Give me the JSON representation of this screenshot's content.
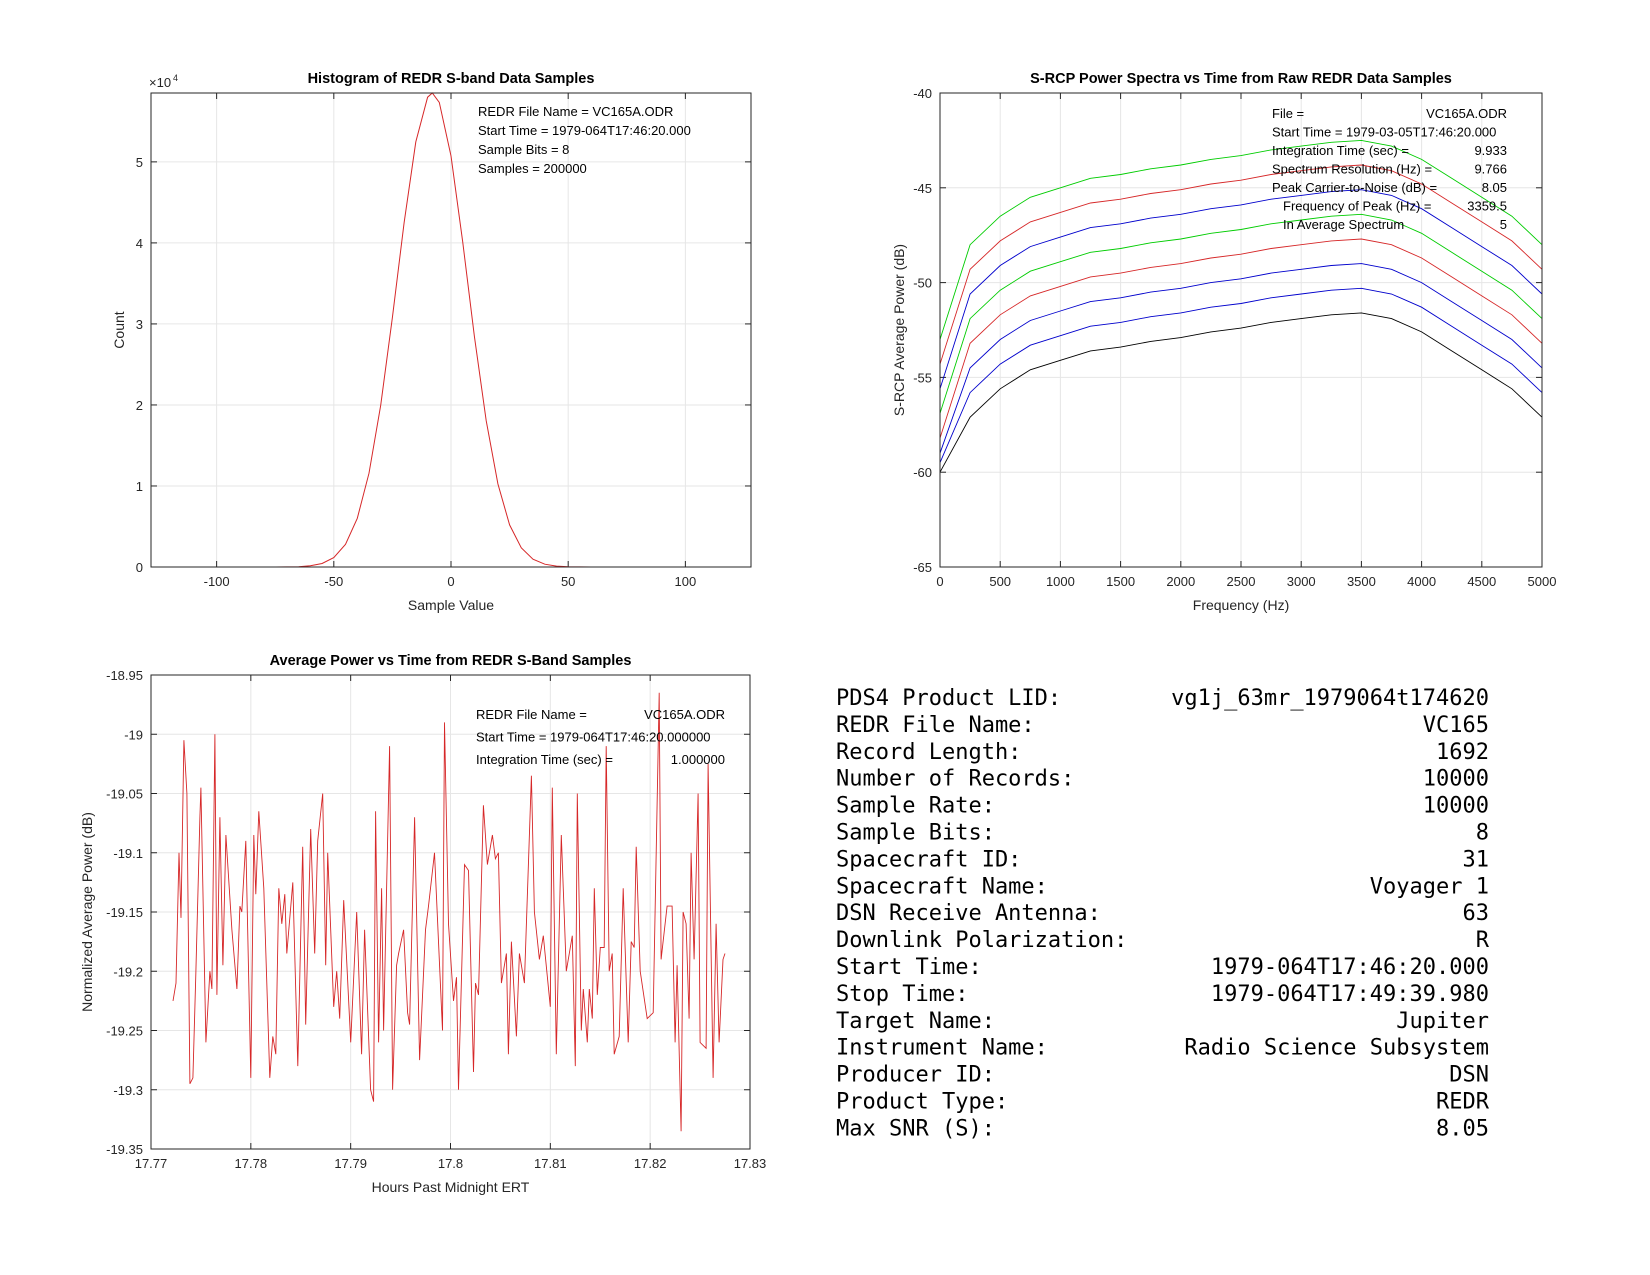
{
  "chart_data": [
    {
      "type": "line",
      "title": "Histogram of REDR S-band Data Samples",
      "xlabel": "Sample Value",
      "ylabel": "Count",
      "y_exponent_label": "×10",
      "y_exponent": "4",
      "xlim": [
        -128,
        128
      ],
      "ylim": [
        0,
        58500
      ],
      "xticks": [
        -100,
        -50,
        0,
        50,
        100
      ],
      "xtick_labels": [
        "-100",
        "-50",
        "0",
        "50",
        "100"
      ],
      "yticks": [
        0,
        10000,
        20000,
        30000,
        40000,
        50000
      ],
      "ytick_labels": [
        "0",
        "1",
        "2",
        "3",
        "4",
        "5"
      ],
      "grid": true,
      "color": "#d62728",
      "x": [
        -85,
        -80,
        -75,
        -70,
        -65,
        -60,
        -55,
        -50,
        -45,
        -40,
        -35,
        -30,
        -25,
        -20,
        -15,
        -10,
        -8,
        -5,
        0,
        5,
        10,
        15,
        20,
        25,
        30,
        35,
        40,
        45,
        50,
        55,
        60
      ],
      "y": [
        0,
        1,
        3,
        11,
        43,
        144,
        430,
        1160,
        2800,
        6010,
        11580,
        19960,
        30800,
        42480,
        52470,
        57980,
        58500,
        57340,
        50740,
        40140,
        28460,
        18060,
        10250,
        5200,
        2365,
        960,
        350,
        114,
        33,
        9,
        0
      ],
      "annotation": [
        "REDR File Name = VC165A.ODR",
        "Start Time = 1979-064T17:46:20.000",
        "Sample Bits = 8",
        "Samples = 200000"
      ]
    },
    {
      "type": "line",
      "title": "S-RCP Power Spectra vs Time from Raw REDR Data Samples",
      "xlabel": "Frequency (Hz)",
      "ylabel": "S-RCP Average Power (dB)",
      "xlim": [
        0,
        5000
      ],
      "ylim": [
        -65,
        -40
      ],
      "xticks": [
        0,
        500,
        1000,
        1500,
        2000,
        2500,
        3000,
        3500,
        4000,
        4500,
        5000
      ],
      "xtick_labels": [
        "0",
        "500",
        "1000",
        "1500",
        "2000",
        "2500",
        "3000",
        "3500",
        "4000",
        "4500",
        "5000"
      ],
      "yticks": [
        -65,
        -60,
        -55,
        -50,
        -45,
        -40
      ],
      "ytick_labels": [
        "-65",
        "-60",
        "-55",
        "-50",
        "-45",
        "-40"
      ],
      "grid": true,
      "x": [
        0,
        250,
        500,
        750,
        1000,
        1250,
        1500,
        1750,
        2000,
        2250,
        2500,
        2750,
        3000,
        3250,
        3500,
        3750,
        4000,
        4250,
        4500,
        4750,
        5000
      ],
      "series": [
        {
          "color": "#00cc00",
          "values": [
            -53,
            -48,
            -46.5,
            -45.5,
            -45,
            -44.5,
            -44.3,
            -44,
            -43.8,
            -43.5,
            -43.3,
            -43,
            -42.8,
            -42.6,
            -42.5,
            -42.8,
            -43.5,
            -44.5,
            -45.5,
            -46.5,
            -48
          ]
        },
        {
          "color": "#d62728",
          "values": [
            -54.3,
            -49.3,
            -47.8,
            -46.8,
            -46.3,
            -45.8,
            -45.6,
            -45.3,
            -45.1,
            -44.8,
            -44.6,
            -44.3,
            -44.1,
            -43.9,
            -43.8,
            -44.1,
            -44.8,
            -45.8,
            -46.8,
            -47.8,
            -49.3
          ]
        },
        {
          "color": "#0000cc",
          "values": [
            -55.6,
            -50.6,
            -49.1,
            -48.1,
            -47.6,
            -47.1,
            -46.9,
            -46.6,
            -46.4,
            -46.1,
            -45.9,
            -45.6,
            -45.4,
            -45.2,
            -45.1,
            -45.4,
            -46.1,
            -47.1,
            -48.1,
            -49.1,
            -50.6
          ]
        },
        {
          "color": "#00cc00",
          "values": [
            -56.9,
            -51.9,
            -50.4,
            -49.4,
            -48.9,
            -48.4,
            -48.2,
            -47.9,
            -47.7,
            -47.4,
            -47.2,
            -46.9,
            -46.7,
            -46.5,
            -46.4,
            -46.7,
            -47.4,
            -48.4,
            -49.4,
            -50.4,
            -51.9
          ]
        },
        {
          "color": "#d62728",
          "values": [
            -58.2,
            -53.2,
            -51.7,
            -50.7,
            -50.2,
            -49.7,
            -49.5,
            -49.2,
            -49,
            -48.7,
            -48.5,
            -48.2,
            -48,
            -47.8,
            -47.7,
            -48,
            -48.7,
            -49.7,
            -50.7,
            -51.7,
            -53.2
          ]
        },
        {
          "color": "#0000cc",
          "values": [
            -59,
            -54.5,
            -53,
            -52,
            -51.5,
            -51,
            -50.8,
            -50.5,
            -50.3,
            -50,
            -49.8,
            -49.5,
            -49.3,
            -49.1,
            -49,
            -49.3,
            -50,
            -51,
            -52,
            -53,
            -54.5
          ]
        },
        {
          "color": "#0000cc",
          "values": [
            -59.5,
            -55.8,
            -54.3,
            -53.3,
            -52.8,
            -52.3,
            -52.1,
            -51.8,
            -51.6,
            -51.3,
            -51.1,
            -50.8,
            -50.6,
            -50.4,
            -50.3,
            -50.6,
            -51.3,
            -52.3,
            -53.3,
            -54.3,
            -55.8
          ]
        },
        {
          "color": "#000000",
          "values": [
            -60,
            -57.1,
            -55.6,
            -54.6,
            -54.1,
            -53.6,
            -53.4,
            -53.1,
            -52.9,
            -52.6,
            -52.4,
            -52.1,
            -51.9,
            -51.7,
            -51.6,
            -51.9,
            -52.6,
            -53.6,
            -54.6,
            -55.6,
            -57.1
          ]
        }
      ],
      "annotation": [
        {
          "label": "File =",
          "value": "VC165A.ODR"
        },
        {
          "label": "Start Time = 1979-03-05T17:46:20.000",
          "value": ""
        },
        {
          "label": "Integration Time (sec) =",
          "value": "9.933"
        },
        {
          "label": "Spectrum Resolution (Hz) =",
          "value": "9.766"
        },
        {
          "label": "Peak Carrier-to-Noise (dB) =",
          "value": "8.05"
        },
        {
          "label": "Frequency of Peak (Hz) =",
          "value": "3359.5"
        },
        {
          "label": "In Average Spectrum",
          "value": "5"
        }
      ]
    },
    {
      "type": "line",
      "title": "Average Power vs Time from REDR S-Band Samples",
      "xlabel": "Hours Past Midnight ERT",
      "ylabel": "Normalized Average Power (dB)",
      "xlim": [
        17.77,
        17.83
      ],
      "ylim": [
        -19.35,
        -18.95
      ],
      "xticks": [
        17.77,
        17.78,
        17.79,
        17.8,
        17.81,
        17.82,
        17.83
      ],
      "xtick_labels": [
        "17.77",
        "17.78",
        "17.79",
        "17.8",
        "17.81",
        "17.82",
        "17.83"
      ],
      "yticks": [
        -19.35,
        -19.3,
        -19.25,
        -19.2,
        -19.15,
        -19.1,
        -19.05,
        -19,
        -18.95
      ],
      "ytick_labels": [
        "-19.35",
        "-19.3",
        "-19.25",
        "-19.2",
        "-19.15",
        "-19.1",
        "-19.05",
        "-19",
        "-18.95"
      ],
      "grid": true,
      "color": "#d62728",
      "points": [
        [
          17.7722,
          -19.225
        ],
        [
          17.7725,
          -19.21
        ],
        [
          17.7728,
          -19.1
        ],
        [
          17.773,
          -19.155
        ],
        [
          17.7733,
          -19.005
        ],
        [
          17.7736,
          -19.05
        ],
        [
          17.7739,
          -19.295
        ],
        [
          17.7742,
          -19.29
        ],
        [
          17.7745,
          -19.2
        ],
        [
          17.7749,
          -19.07
        ],
        [
          17.775,
          -19.045
        ],
        [
          17.7755,
          -19.26
        ],
        [
          17.7759,
          -19.2
        ],
        [
          17.7761,
          -19.215
        ],
        [
          17.7764,
          -19.0
        ],
        [
          17.7766,
          -19.22
        ],
        [
          17.7769,
          -19.07
        ],
        [
          17.7772,
          -19.195
        ],
        [
          17.7775,
          -19.085
        ],
        [
          17.7781,
          -19.165
        ],
        [
          17.7786,
          -19.215
        ],
        [
          17.7789,
          -19.145
        ],
        [
          17.7791,
          -19.15
        ],
        [
          17.7795,
          -19.09
        ],
        [
          17.78,
          -19.29
        ],
        [
          17.7803,
          -19.085
        ],
        [
          17.7805,
          -19.135
        ],
        [
          17.7808,
          -19.065
        ],
        [
          17.7813,
          -19.13
        ],
        [
          17.7819,
          -19.29
        ],
        [
          17.7822,
          -19.255
        ],
        [
          17.7825,
          -19.27
        ],
        [
          17.7828,
          -19.13
        ],
        [
          17.7831,
          -19.16
        ],
        [
          17.7834,
          -19.135
        ],
        [
          17.7836,
          -19.185
        ],
        [
          17.7842,
          -19.125
        ],
        [
          17.7847,
          -19.28
        ],
        [
          17.7852,
          -19.095
        ],
        [
          17.7855,
          -19.245
        ],
        [
          17.786,
          -19.08
        ],
        [
          17.7864,
          -19.185
        ],
        [
          17.7867,
          -19.09
        ],
        [
          17.7872,
          -19.05
        ],
        [
          17.7875,
          -19.195
        ],
        [
          17.7877,
          -19.1
        ],
        [
          17.7883,
          -19.23
        ],
        [
          17.7886,
          -19.2
        ],
        [
          17.7889,
          -19.24
        ],
        [
          17.7893,
          -19.14
        ],
        [
          17.79,
          -19.26
        ],
        [
          17.7906,
          -19.15
        ],
        [
          17.7911,
          -19.27
        ],
        [
          17.7914,
          -19.165
        ],
        [
          17.792,
          -19.3
        ],
        [
          17.7923,
          -19.31
        ],
        [
          17.7925,
          -19.065
        ],
        [
          17.7928,
          -19.26
        ],
        [
          17.7931,
          -19.13
        ],
        [
          17.7933,
          -19.25
        ],
        [
          17.7939,
          -19.01
        ],
        [
          17.7942,
          -19.3
        ],
        [
          17.7946,
          -19.195
        ],
        [
          17.7948,
          -19.185
        ],
        [
          17.7953,
          -19.165
        ],
        [
          17.7957,
          -19.235
        ],
        [
          17.7959,
          -19.245
        ],
        [
          17.7964,
          -19.07
        ],
        [
          17.7969,
          -19.275
        ],
        [
          17.7975,
          -19.165
        ],
        [
          17.7978,
          -19.145
        ],
        [
          17.7984,
          -19.1
        ],
        [
          17.7992,
          -19.25
        ],
        [
          17.7994,
          -18.99
        ],
        [
          17.7998,
          -19.16
        ],
        [
          17.8003,
          -19.225
        ],
        [
          17.8006,
          -19.205
        ],
        [
          17.8008,
          -19.3
        ],
        [
          17.8014,
          -19.11
        ],
        [
          17.8018,
          -19.115
        ],
        [
          17.8023,
          -19.285
        ],
        [
          17.8025,
          -19.21
        ],
        [
          17.8028,
          -19.22
        ],
        [
          17.8033,
          -19.06
        ],
        [
          17.8037,
          -19.11
        ],
        [
          17.8042,
          -19.085
        ],
        [
          17.8045,
          -19.105
        ],
        [
          17.8048,
          -19.1
        ],
        [
          17.8051,
          -19.21
        ],
        [
          17.8056,
          -19.185
        ],
        [
          17.8058,
          -19.27
        ],
        [
          17.8061,
          -19.175
        ],
        [
          17.8066,
          -19.255
        ],
        [
          17.8069,
          -19.185
        ],
        [
          17.8074,
          -19.21
        ],
        [
          17.8081,
          -19.035
        ],
        [
          17.8084,
          -19.15
        ],
        [
          17.8089,
          -19.19
        ],
        [
          17.8093,
          -19.17
        ],
        [
          17.81,
          -19.23
        ],
        [
          17.8102,
          -19.045
        ],
        [
          17.8106,
          -19.27
        ],
        [
          17.8111,
          -19.085
        ],
        [
          17.8116,
          -19.2
        ],
        [
          17.8122,
          -19.17
        ],
        [
          17.8125,
          -19.28
        ],
        [
          17.8127,
          -19.05
        ],
        [
          17.8131,
          -19.25
        ],
        [
          17.8133,
          -19.215
        ],
        [
          17.8137,
          -19.26
        ],
        [
          17.8139,
          -19.215
        ],
        [
          17.8142,
          -19.24
        ],
        [
          17.8144,
          -19.13
        ],
        [
          17.8147,
          -19.22
        ],
        [
          17.815,
          -19.18
        ],
        [
          17.8154,
          -19.18
        ],
        [
          17.8156,
          -19.01
        ],
        [
          17.8159,
          -19.2
        ],
        [
          17.8162,
          -19.185
        ],
        [
          17.8164,
          -19.27
        ],
        [
          17.8169,
          -19.255
        ],
        [
          17.8173,
          -19.13
        ],
        [
          17.8178,
          -19.26
        ],
        [
          17.8181,
          -19.175
        ],
        [
          17.8184,
          -19.18
        ],
        [
          17.8186,
          -19.095
        ],
        [
          17.819,
          -19.2
        ],
        [
          17.8197,
          -19.24
        ],
        [
          17.8203,
          -19.235
        ],
        [
          17.8209,
          -18.965
        ],
        [
          17.8211,
          -19.19
        ],
        [
          17.8217,
          -19.145
        ],
        [
          17.8222,
          -19.145
        ],
        [
          17.8225,
          -19.26
        ],
        [
          17.8227,
          -19.195
        ],
        [
          17.8231,
          -19.335
        ],
        [
          17.8233,
          -19.15
        ],
        [
          17.8236,
          -19.16
        ],
        [
          17.8239,
          -19.24
        ],
        [
          17.8241,
          -19.1
        ],
        [
          17.8244,
          -19.19
        ],
        [
          17.8248,
          -19.05
        ],
        [
          17.825,
          -19.26
        ],
        [
          17.8256,
          -19.265
        ],
        [
          17.8258,
          -19.025
        ],
        [
          17.8263,
          -19.29
        ],
        [
          17.8266,
          -19.16
        ],
        [
          17.8269,
          -19.26
        ],
        [
          17.8273,
          -19.19
        ],
        [
          17.8275,
          -19.185
        ]
      ],
      "annotation": [
        {
          "label": "REDR File Name =",
          "value": "VC165A.ODR"
        },
        {
          "label": "Start Time = 1979-064T17:46:20.000000",
          "value": ""
        },
        {
          "label": "Integration Time (sec) =",
          "value": "1.000000"
        }
      ]
    }
  ],
  "summary_table": [
    {
      "label": "PDS4 Product LID:",
      "value": "vg1j_63mr_1979064t174620"
    },
    {
      "label": "REDR File Name:",
      "value": "VC165"
    },
    {
      "label": "Record Length:",
      "value": "1692"
    },
    {
      "label": "Number of Records:",
      "value": "10000"
    },
    {
      "label": "Sample Rate:",
      "value": "10000"
    },
    {
      "label": "Sample Bits:",
      "value": "8"
    },
    {
      "label": "Spacecraft ID:",
      "value": "31"
    },
    {
      "label": "Spacecraft Name:",
      "value": "Voyager 1"
    },
    {
      "label": "DSN Receive Antenna:",
      "value": "63"
    },
    {
      "label": "Downlink Polarization:",
      "value": "R"
    },
    {
      "label": "Start Time:",
      "value": "1979-064T17:46:20.000"
    },
    {
      "label": "Stop Time:",
      "value": "1979-064T17:49:39.980"
    },
    {
      "label": "Target Name:",
      "value": "Jupiter"
    },
    {
      "label": "Instrument Name:",
      "value": "Radio Science Subsystem"
    },
    {
      "label": "Producer ID:",
      "value": "DSN"
    },
    {
      "label": "Product Type:",
      "value": "REDR"
    },
    {
      "label": "Max SNR (S):",
      "value": "8.05"
    }
  ]
}
